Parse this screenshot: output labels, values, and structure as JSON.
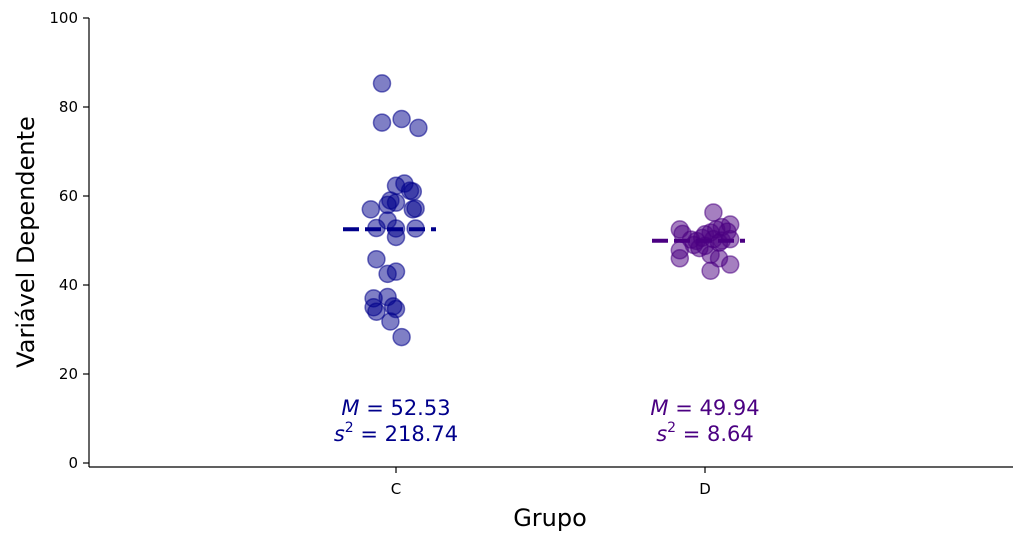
{
  "chart_data": {
    "type": "scatter",
    "xlabel": "Grupo",
    "ylabel": "Variável Dependente",
    "ylim": [
      0,
      100
    ],
    "yticks": [
      0,
      20,
      40,
      60,
      80,
      100
    ],
    "categories": [
      "C",
      "D"
    ],
    "grid": false,
    "series": [
      {
        "category": "C",
        "color": "#00008b",
        "mean": 52.53,
        "mean_text": "= 52.53",
        "var_text": "= 218.74",
        "points": [
          [
            -0.05,
            85.3
          ],
          [
            -0.05,
            76.5
          ],
          [
            0.02,
            77.3
          ],
          [
            0.08,
            75.3
          ],
          [
            0.0,
            62.3
          ],
          [
            0.03,
            62.8
          ],
          [
            0.05,
            61.2
          ],
          [
            0.06,
            61.0
          ],
          [
            -0.02,
            59.0
          ],
          [
            0.0,
            58.5
          ],
          [
            -0.03,
            58.0
          ],
          [
            -0.09,
            57.0
          ],
          [
            0.06,
            57.0
          ],
          [
            0.07,
            57.2
          ],
          [
            -0.03,
            54.5
          ],
          [
            -0.07,
            52.8
          ],
          [
            0.0,
            52.7
          ],
          [
            0.07,
            52.7
          ],
          [
            0.0,
            50.8
          ],
          [
            -0.07,
            45.8
          ],
          [
            -0.03,
            42.5
          ],
          [
            0.0,
            43.0
          ],
          [
            -0.08,
            37.0
          ],
          [
            -0.03,
            37.3
          ],
          [
            -0.08,
            35.0
          ],
          [
            -0.07,
            34.0
          ],
          [
            -0.01,
            35.2
          ],
          [
            0.0,
            34.6
          ],
          [
            -0.02,
            31.8
          ],
          [
            0.02,
            28.3
          ]
        ]
      },
      {
        "category": "D",
        "color": "#4b0082",
        "mean": 49.94,
        "mean_text": "= 49.94",
        "var_text": "= 8.64",
        "points": [
          [
            0.03,
            56.3
          ],
          [
            -0.09,
            52.5
          ],
          [
            -0.08,
            51.5
          ],
          [
            0.09,
            53.6
          ],
          [
            0.06,
            53.0
          ],
          [
            0.04,
            52.5
          ],
          [
            0.08,
            52.0
          ],
          [
            0.02,
            51.8
          ],
          [
            0.0,
            51.4
          ],
          [
            -0.05,
            50.2
          ],
          [
            -0.03,
            49.9
          ],
          [
            -0.01,
            50.6
          ],
          [
            0.03,
            50.3
          ],
          [
            0.06,
            50.0
          ],
          [
            0.09,
            50.3
          ],
          [
            0.05,
            49.5
          ],
          [
            -0.04,
            49.0
          ],
          [
            -0.02,
            48.3
          ],
          [
            0.0,
            48.8
          ],
          [
            -0.09,
            47.8
          ],
          [
            -0.09,
            46.0
          ],
          [
            0.02,
            46.8
          ],
          [
            0.05,
            46.0
          ],
          [
            0.09,
            44.6
          ],
          [
            0.02,
            43.2
          ]
        ]
      }
    ]
  },
  "labels": {
    "mean_symbol": "M",
    "var_symbol": "s",
    "var_exponent": "2"
  }
}
